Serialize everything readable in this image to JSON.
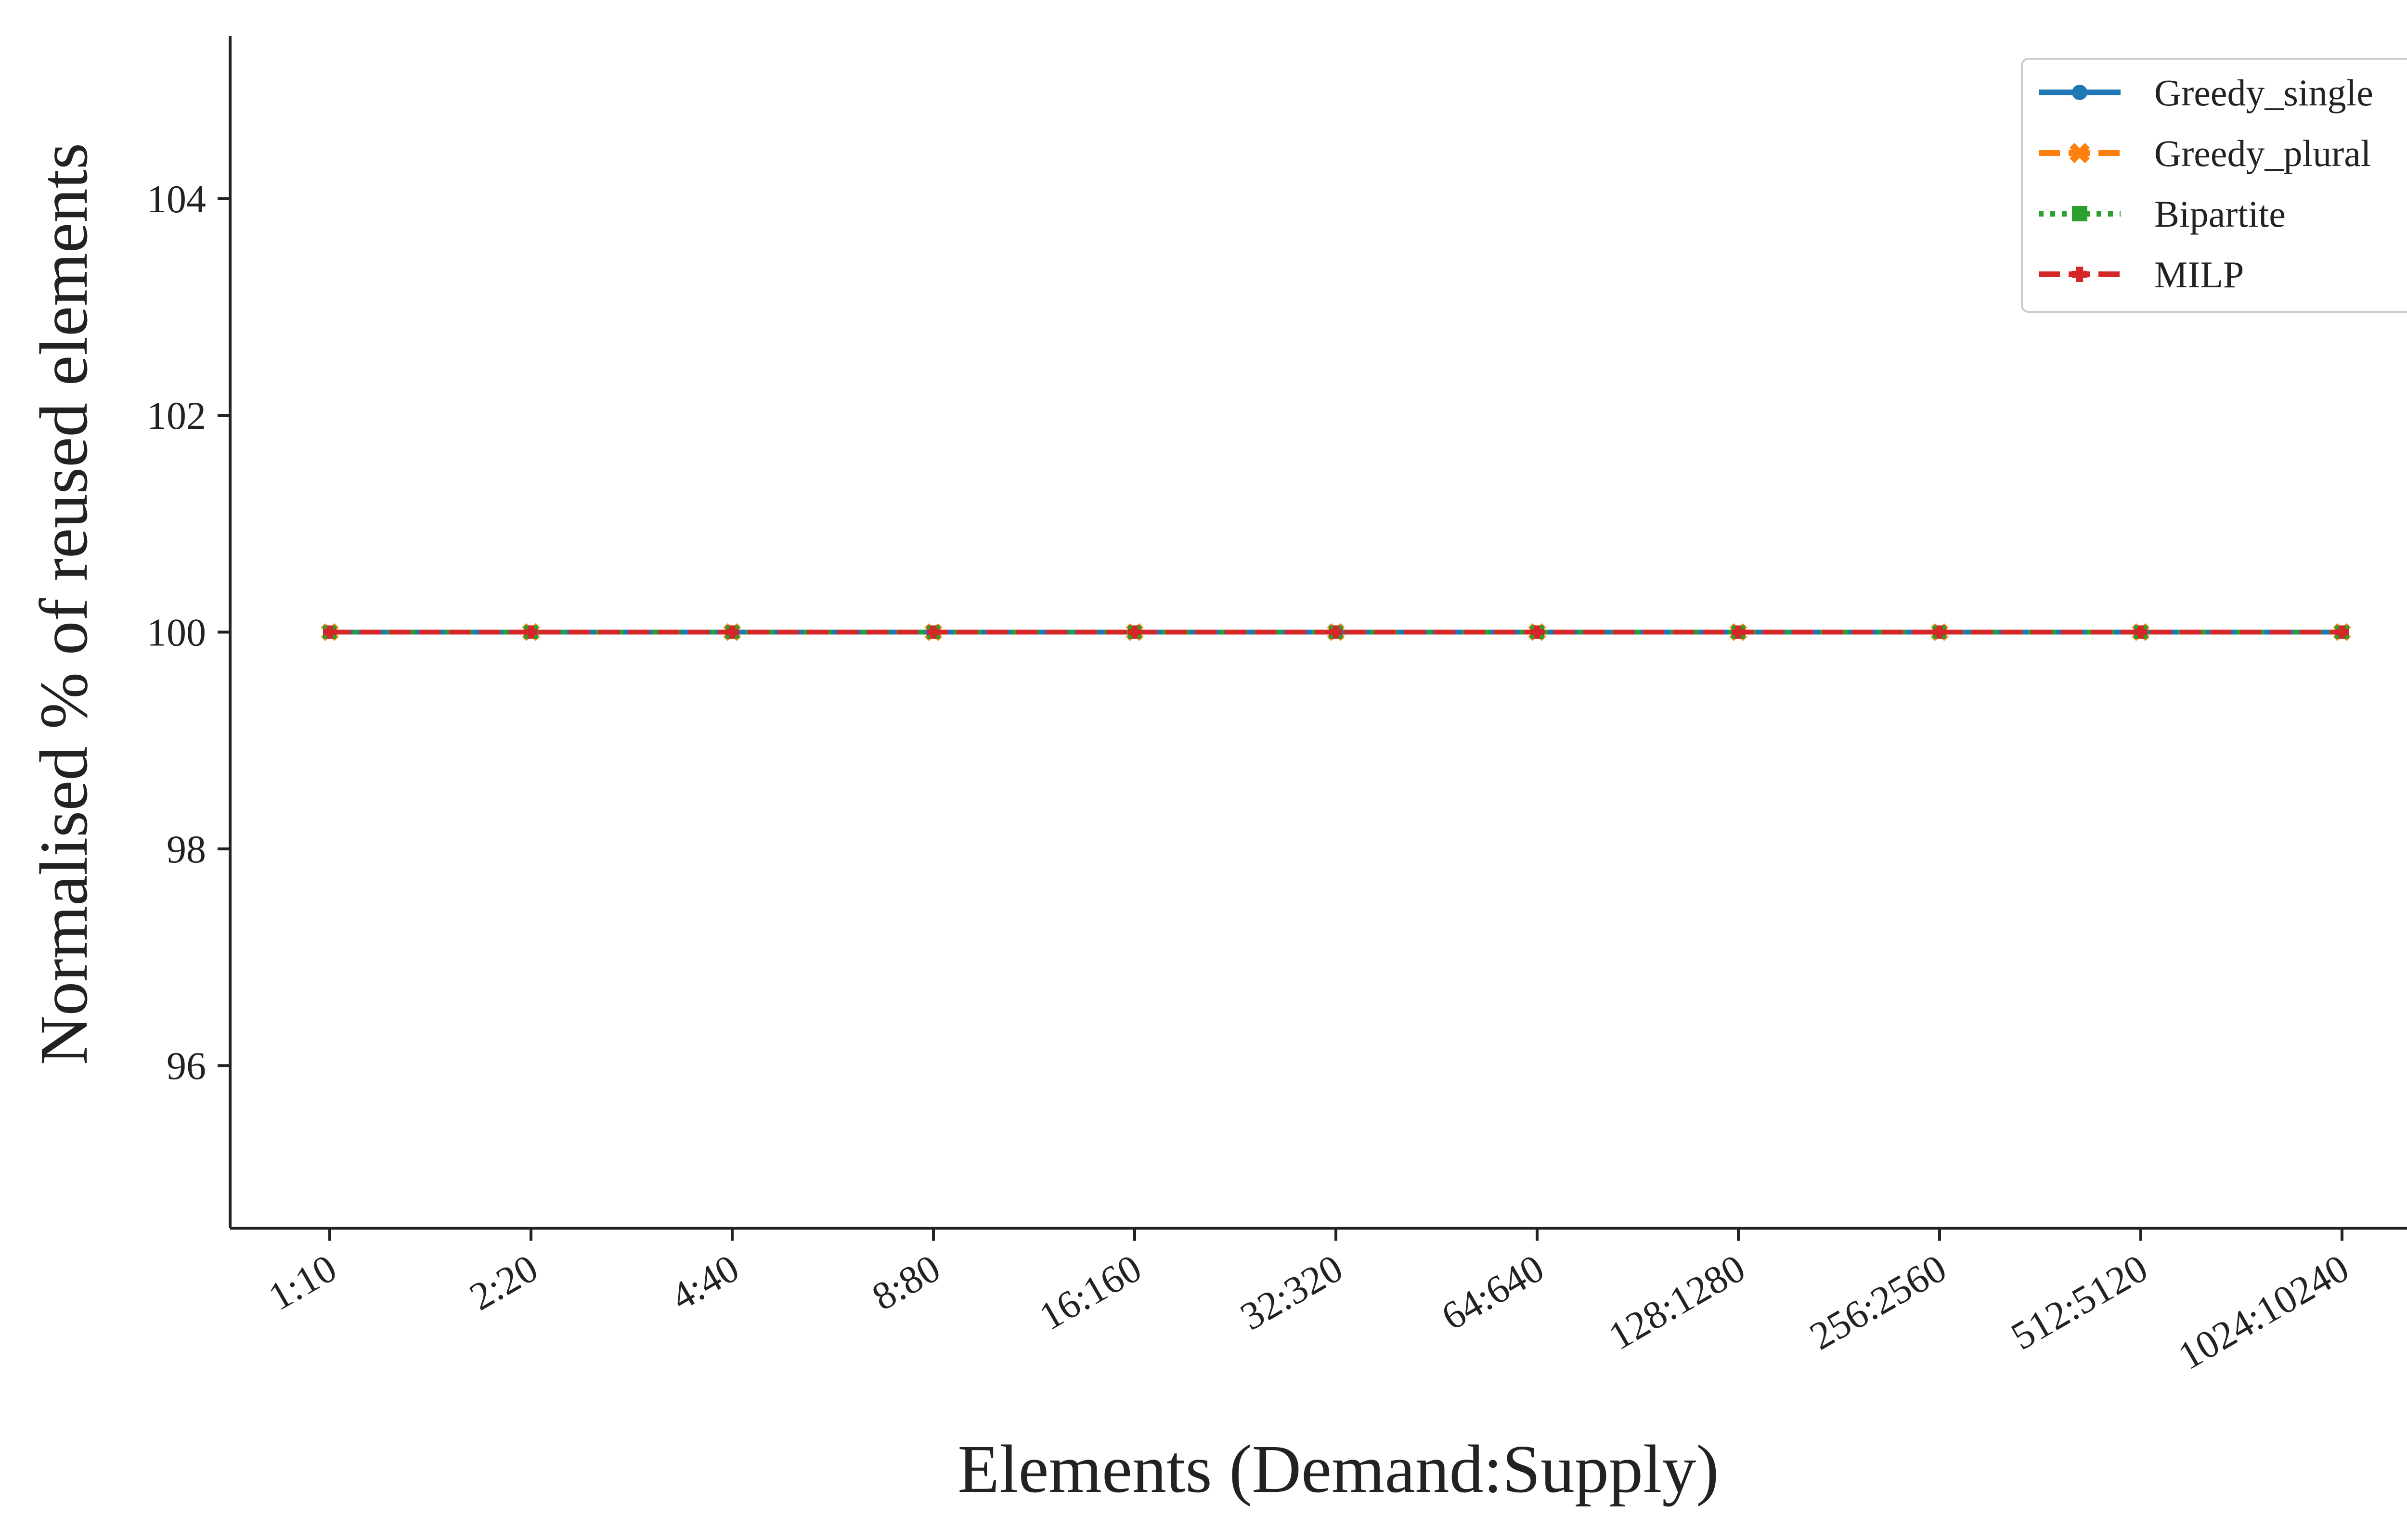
{
  "chart_data": {
    "type": "line",
    "title": "",
    "xlabel": "Elements (Demand:Supply)",
    "ylabel": "Normalised % of reused elements",
    "categories": [
      "1:10",
      "2:20",
      "4:40",
      "8:80",
      "16:160",
      "32:320",
      "64:640",
      "128:1280",
      "256:2560",
      "512:5120",
      "1024:10240"
    ],
    "ylim": [
      94.5,
      105.5
    ],
    "yticks": [
      96,
      98,
      100,
      102,
      104
    ],
    "grid": false,
    "legend_position": "top-right",
    "series": [
      {
        "name": "Greedy_single",
        "color": "#1f77b4",
        "dash": "solid",
        "marker": "circle",
        "values": [
          100,
          100,
          100,
          100,
          100,
          100,
          100,
          100,
          100,
          100,
          100
        ]
      },
      {
        "name": "Greedy_plural",
        "color": "#ff7f0e",
        "dash": "dashed",
        "marker": "x",
        "values": [
          100,
          100,
          100,
          100,
          100,
          100,
          100,
          100,
          100,
          100,
          100
        ]
      },
      {
        "name": "Bipartite",
        "color": "#2ca02c",
        "dash": "dotted",
        "marker": "square",
        "values": [
          100,
          100,
          100,
          100,
          100,
          100,
          100,
          100,
          100,
          100,
          100
        ]
      },
      {
        "name": "MILP",
        "color": "#d62728",
        "dash": "dashed",
        "marker": "plus",
        "values": [
          100,
          100,
          100,
          100,
          100,
          100,
          100,
          100,
          100,
          100,
          100
        ]
      }
    ]
  }
}
